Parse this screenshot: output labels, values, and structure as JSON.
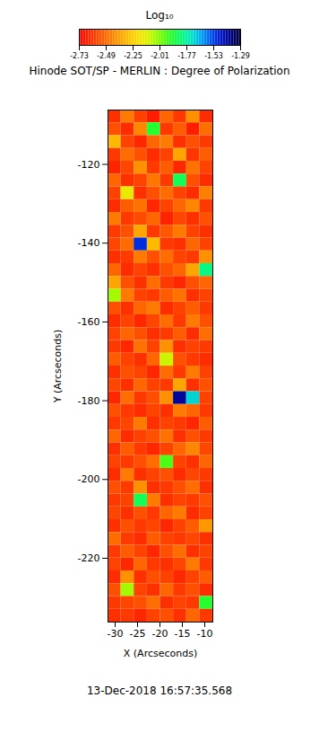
{
  "chart_data": {
    "type": "heatmap",
    "title": "Hinode SOT/SP - MERLIN : Degree of Polarization",
    "x_label": "X (Arcseconds)",
    "y_label": "Y (Arcseconds)",
    "annotation": "13-Dec-2018 16:57:35.568",
    "xlim": [
      -31.6,
      -8.2
    ],
    "ylim": [
      -236.2,
      -106.2
    ],
    "xticks": [
      -30,
      -25,
      -20,
      -15,
      -10
    ],
    "yticks": [
      -220,
      -200,
      -180,
      -160,
      -140,
      -120
    ],
    "x": [
      -30.1375,
      -27.2125,
      -24.2875,
      -21.3625,
      -18.4375,
      -15.5125,
      -12.5875,
      -9.6625
    ],
    "y": [
      -107.825,
      -111.075,
      -114.325,
      -117.575,
      -120.825,
      -124.075,
      -127.325,
      -130.575,
      -133.825,
      -137.075,
      -140.325,
      -143.575,
      -146.825,
      -150.075,
      -153.325,
      -156.575,
      -159.825,
      -163.075,
      -166.325,
      -169.575,
      -172.825,
      -176.075,
      -179.325,
      -182.575,
      -185.825,
      -189.075,
      -192.325,
      -195.575,
      -198.825,
      -202.075,
      -205.325,
      -208.575,
      -211.825,
      -215.075,
      -218.325,
      -221.575,
      -224.825,
      -228.075,
      -231.325,
      -234.575
    ],
    "values": [
      [
        -2.62,
        -2.45,
        -2.58,
        -2.66,
        -2.5,
        -2.6,
        -2.4,
        -2.63
      ],
      [
        -2.55,
        -2.63,
        -2.42,
        -1.9,
        -2.6,
        -2.52,
        -2.66,
        -2.48
      ],
      [
        -2.3,
        -2.58,
        -2.64,
        -2.5,
        -2.45,
        -2.62,
        -2.55,
        -2.6
      ],
      [
        -2.6,
        -2.48,
        -2.55,
        -2.63,
        -2.58,
        -2.35,
        -2.61,
        -2.52
      ],
      [
        -2.65,
        -2.57,
        -2.4,
        -2.6,
        -2.52,
        -2.64,
        -2.47,
        -2.58
      ],
      [
        -2.5,
        -2.62,
        -2.58,
        -2.46,
        -2.6,
        -1.85,
        -2.55,
        -2.63
      ],
      [
        -2.58,
        -2.15,
        -2.62,
        -2.55,
        -2.48,
        -2.58,
        -2.63,
        -2.44
      ],
      [
        -2.63,
        -2.52,
        -2.47,
        -2.64,
        -2.58,
        -2.5,
        -2.42,
        -2.6
      ],
      [
        -2.45,
        -2.6,
        -2.56,
        -2.5,
        -2.65,
        -2.57,
        -2.62,
        -2.55
      ],
      [
        -2.6,
        -2.55,
        -2.35,
        -2.6,
        -2.53,
        -2.45,
        -2.58,
        -2.62
      ],
      [
        -2.57,
        -2.48,
        -1.5,
        -2.3,
        -2.6,
        -2.62,
        -2.5,
        -2.58
      ],
      [
        -2.62,
        -2.6,
        -2.45,
        -2.55,
        -2.48,
        -2.58,
        -2.6,
        -2.4
      ],
      [
        -2.5,
        -2.63,
        -2.58,
        -2.62,
        -2.55,
        -2.5,
        -2.35,
        -1.8
      ],
      [
        -2.35,
        -2.55,
        -2.62,
        -2.48,
        -2.6,
        -2.64,
        -2.55,
        -2.5
      ],
      [
        -2.05,
        -2.45,
        -2.58,
        -2.6,
        -2.52,
        -2.47,
        -2.62,
        -2.58
      ],
      [
        -2.55,
        -2.62,
        -2.5,
        -2.45,
        -2.63,
        -2.58,
        -2.52,
        -2.6
      ],
      [
        -2.63,
        -2.58,
        -2.64,
        -2.57,
        -2.48,
        -2.6,
        -2.45,
        -2.55
      ],
      [
        -2.58,
        -2.5,
        -2.55,
        -2.62,
        -2.6,
        -2.52,
        -2.63,
        -2.48
      ],
      [
        -2.6,
        -2.64,
        -2.47,
        -2.58,
        -2.4,
        -2.62,
        -2.58,
        -2.6
      ],
      [
        -2.52,
        -2.58,
        -2.62,
        -2.5,
        -2.1,
        -2.55,
        -2.6,
        -2.63
      ],
      [
        -2.62,
        -2.55,
        -2.58,
        -2.64,
        -2.48,
        -2.6,
        -2.45,
        -2.58
      ],
      [
        -2.57,
        -2.62,
        -2.5,
        -2.58,
        -2.6,
        -2.35,
        -2.62,
        -2.55
      ],
      [
        -2.64,
        -2.48,
        -2.6,
        -2.55,
        -2.4,
        -1.4,
        -1.7,
        -2.58
      ],
      [
        -2.55,
        -2.6,
        -2.63,
        -2.58,
        -2.62,
        -2.45,
        -2.5,
        -2.6
      ],
      [
        -2.6,
        -2.57,
        -2.45,
        -2.62,
        -2.58,
        -2.6,
        -2.64,
        -2.52
      ],
      [
        -2.5,
        -2.63,
        -2.58,
        -2.55,
        -2.47,
        -2.62,
        -2.55,
        -2.6
      ],
      [
        -2.62,
        -2.52,
        -2.6,
        -2.64,
        -2.58,
        -2.5,
        -2.42,
        -2.57
      ],
      [
        -2.58,
        -2.6,
        -2.55,
        -2.48,
        -1.95,
        -2.58,
        -2.62,
        -2.5
      ],
      [
        -2.63,
        -2.45,
        -2.62,
        -2.58,
        -2.55,
        -2.63,
        -2.57,
        -2.6
      ],
      [
        -2.55,
        -2.6,
        -2.4,
        -2.62,
        -2.6,
        -2.55,
        -2.48,
        -2.62
      ],
      [
        -2.6,
        -2.58,
        -1.85,
        -2.45,
        -2.62,
        -2.58,
        -2.6,
        -2.55
      ],
      [
        -2.57,
        -2.62,
        -2.55,
        -2.6,
        -2.5,
        -2.45,
        -2.63,
        -2.58
      ],
      [
        -2.62,
        -2.55,
        -2.6,
        -2.57,
        -2.64,
        -2.58,
        -2.52,
        -2.38
      ],
      [
        -2.48,
        -2.6,
        -2.63,
        -2.52,
        -2.58,
        -2.6,
        -2.57,
        -2.62
      ],
      [
        -2.6,
        -2.52,
        -2.58,
        -2.64,
        -2.55,
        -2.48,
        -2.62,
        -2.58
      ],
      [
        -2.58,
        -2.64,
        -2.5,
        -2.6,
        -2.62,
        -2.57,
        -2.45,
        -2.6
      ],
      [
        -2.63,
        -2.4,
        -2.62,
        -2.55,
        -2.58,
        -2.64,
        -2.58,
        -2.52
      ],
      [
        -2.55,
        -2.05,
        -2.58,
        -2.62,
        -2.5,
        -2.6,
        -2.55,
        -2.63
      ],
      [
        -2.6,
        -2.57,
        -2.55,
        -2.48,
        -2.62,
        -2.58,
        -2.6,
        -1.9
      ],
      [
        -2.62,
        -2.6,
        -2.64,
        -2.58,
        -2.55,
        -2.62,
        -2.5,
        -2.6
      ]
    ],
    "colorbar": {
      "label": "Log₁₀",
      "range": [
        -2.73,
        -1.29
      ],
      "ticks": [
        -2.73,
        -2.49,
        -2.25,
        -2.01,
        -1.77,
        -1.53,
        -1.29
      ]
    }
  }
}
